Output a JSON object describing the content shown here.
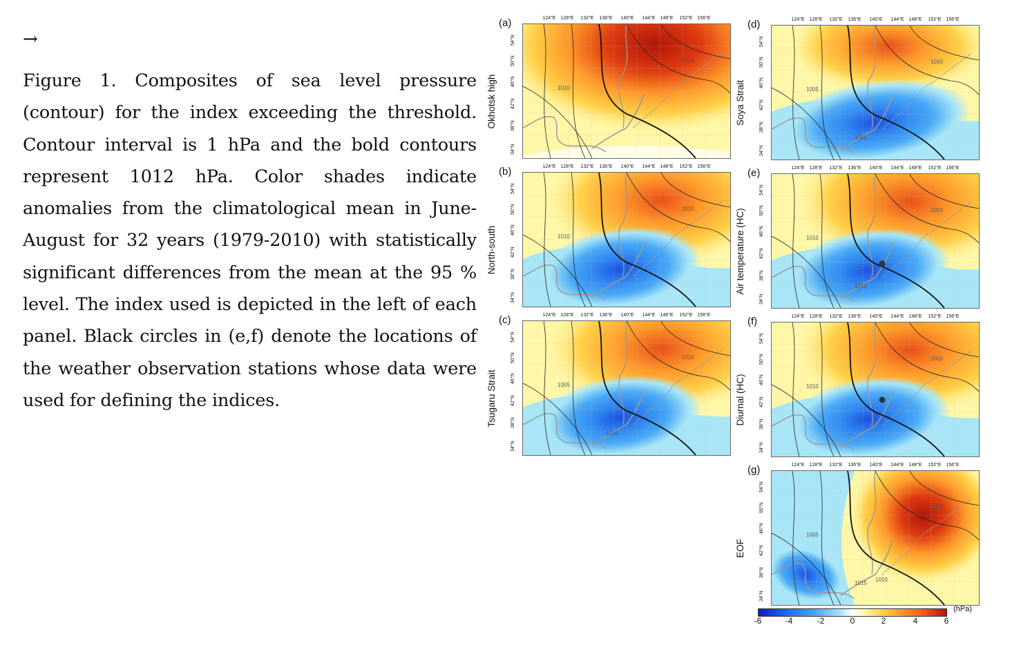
{
  "arrow": "→",
  "caption": {
    "lead": "Figure 1.",
    "text": "Composites of sea level pressure (contour) for the index exceeding the threshold. Contour interval is 1 hPa and the bold contours represent 1012 hPa. Color shades indicate anomalies from the climatological mean in June-August for 32 years (1979-2010) with statistically significant differences from the mean at the 95 % level. The index used is depicted in the left of each panel. Black circles in (e,f) denote the locations of the weather observation stations whose data were used for defining the indices."
  },
  "lon_ticks": [
    "124°E",
    "128°E",
    "132°E",
    "136°E",
    "140°E",
    "144°E",
    "148°E",
    "152°E",
    "156°E"
  ],
  "lat_ticks": [
    "54°N",
    "50°N",
    "46°N",
    "42°N",
    "38°N",
    "34°N"
  ],
  "panels": [
    {
      "letter": "(a)",
      "index": "Okhotsk high",
      "pattern": "high",
      "contours": [
        "1010",
        "1015"
      ],
      "station": false
    },
    {
      "letter": "(b)",
      "index": "North-south",
      "pattern": "dipole",
      "contours": [
        "1010",
        "1010"
      ],
      "station": false
    },
    {
      "letter": "(c)",
      "index": "Tsugaru Strait",
      "pattern": "dipole",
      "contours": [
        "1005",
        "1010",
        "1010"
      ],
      "station": false
    },
    {
      "letter": "(d)",
      "index": "Soya Strait",
      "pattern": "dipole-south",
      "contours": [
        "1005",
        "1010",
        "1010"
      ],
      "station": false
    },
    {
      "letter": "(e)",
      "index": "Air temperature (HC)",
      "pattern": "dipole",
      "contours": [
        "1010",
        "1010",
        "1010"
      ],
      "station": true
    },
    {
      "letter": "(f)",
      "index": "Diurnal (HC)",
      "pattern": "dipole",
      "contours": [
        "1010",
        "1010"
      ],
      "station": true
    },
    {
      "letter": "(g)",
      "index": "EOF",
      "pattern": "east-high",
      "contours": [
        "1005",
        "1010",
        "1015",
        "1010"
      ],
      "station": false
    }
  ],
  "colorbar": {
    "ticks": [
      "-6",
      "-4",
      "-2",
      "0",
      "2",
      "4",
      "6"
    ],
    "unit": "(hPa)",
    "colors": {
      "neg_strong": "#0a1fc8",
      "neg_mid": "#49a9f6",
      "neg_weak": "#a8e6f7",
      "zero": "#ffffff",
      "pos_weak": "#fff7a8",
      "pos_mid": "#ff9a2a",
      "pos_strong": "#b0160a"
    }
  }
}
